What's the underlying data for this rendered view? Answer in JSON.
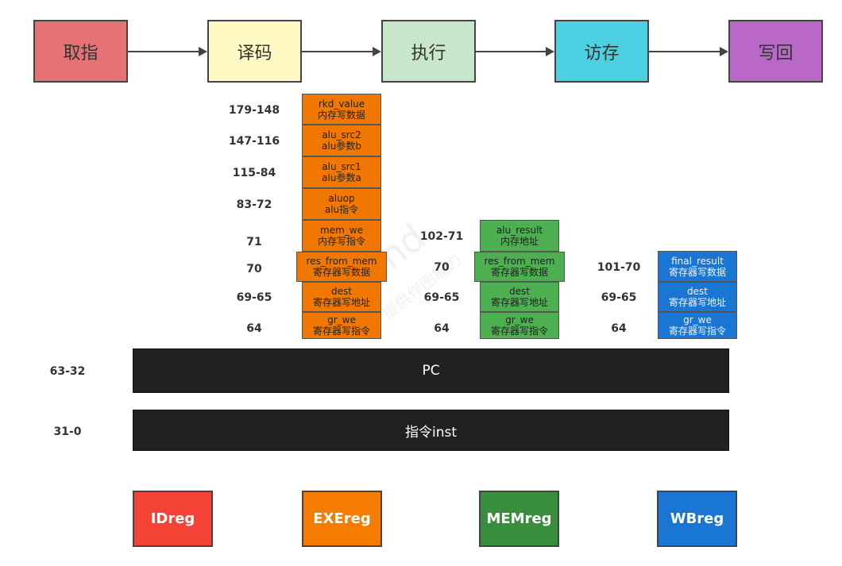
{
  "stages": [
    "取指",
    "译码",
    "执行",
    "访存",
    "写回"
  ],
  "stage_colors": [
    "#e57373",
    "#fff9c4",
    "#c8e6c9",
    "#4dd0e1",
    "#ba68c8"
  ],
  "watermark": "Mind",
  "watermark_sub": "提供作图能力",
  "idreg_fields": [
    {
      "bits": "179-148",
      "name": "rkd_value",
      "desc": "内存写数据"
    },
    {
      "bits": "147-116",
      "name": "alu_src2",
      "desc": "alu参数b"
    },
    {
      "bits": "115-84",
      "name": "alu_src1",
      "desc": "alu参数a"
    },
    {
      "bits": "83-72",
      "name": "aluop",
      "desc": "alu指令"
    },
    {
      "bits": "71",
      "name": "mem_we",
      "desc": "内存写指令"
    },
    {
      "bits": "70",
      "name": "res_from_mem",
      "desc": "寄存器写数据"
    },
    {
      "bits": "69-65",
      "name": "dest",
      "desc": "寄存器写地址"
    },
    {
      "bits": "64",
      "name": "gr_we",
      "desc": "寄存器写指令"
    }
  ],
  "exe_fields": [
    {
      "bits": "102-71",
      "name": "alu_result",
      "desc": "内存地址"
    },
    {
      "bits": "70",
      "name": "res_from_mem",
      "desc": "寄存器写数据"
    },
    {
      "bits": "69-65",
      "name": "dest",
      "desc": "寄存器写地址"
    },
    {
      "bits": "64",
      "name": "gr_we",
      "desc": "寄存器写指令"
    }
  ],
  "mem_fields": [
    {
      "bits": "101-70",
      "name": "final_result",
      "desc": "寄存器写数据"
    },
    {
      "bits": "69-65",
      "name": "dest",
      "desc": "寄存器写地址"
    },
    {
      "bits": "64",
      "name": "gr_we",
      "desc": "寄存器写指令"
    }
  ],
  "shared_bars": [
    {
      "bits": "63-32",
      "label": "PC"
    },
    {
      "bits": "31-0",
      "label": "指令inst"
    }
  ],
  "registers": [
    {
      "label": "IDreg",
      "color": "#f44336"
    },
    {
      "label": "EXEreg",
      "color": "#f57c00"
    },
    {
      "label": "MEMreg",
      "color": "#388e3c"
    },
    {
      "label": "WBreg",
      "color": "#1976d2"
    }
  ]
}
